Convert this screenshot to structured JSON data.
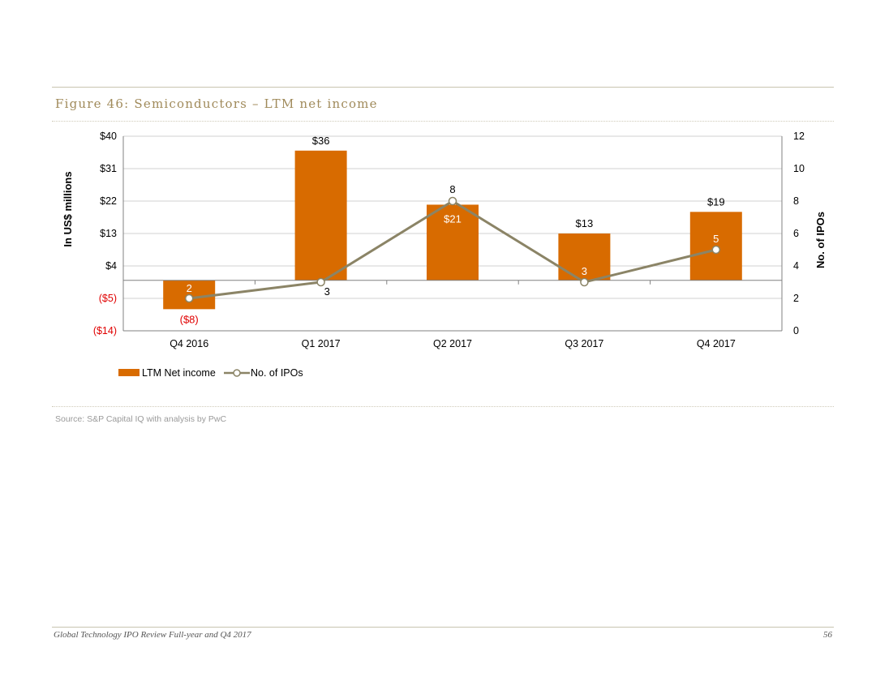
{
  "figure_title": "Figure 46: Semiconductors – LTM net income",
  "source": "Source: S&P Capital IQ with analysis by PwC",
  "footer": {
    "text": "Global Technology IPO Review Full-year and Q4 2017",
    "page_number": "56"
  },
  "colors": {
    "bar": "#d86b00",
    "line": "#8b8466",
    "negative_label": "#e00000",
    "title": "#a08a5a"
  },
  "chart_data": {
    "type": "bar",
    "categories": [
      "Q4 2016",
      "Q1 2017",
      "Q2 2017",
      "Q3 2017",
      "Q4 2017"
    ],
    "series": [
      {
        "name": "LTM Net income",
        "type": "bar",
        "axis": "left",
        "values": [
          -8,
          36,
          21,
          13,
          19
        ],
        "labels": [
          "($8)",
          "$36",
          "$21",
          "$13",
          "$19"
        ]
      },
      {
        "name": "No. of IPOs",
        "type": "line",
        "axis": "right",
        "values": [
          2,
          3,
          8,
          3,
          5
        ],
        "labels": [
          "2",
          "3",
          "8",
          "3",
          "5"
        ]
      }
    ],
    "ylabel": "In US$ millions",
    "y2label": "No. of IPOs",
    "ylim": [
      -14,
      40
    ],
    "y2lim": [
      0,
      12
    ],
    "yticks": [
      -14,
      -5,
      4,
      13,
      22,
      31,
      40
    ],
    "ytick_labels": [
      "($14)",
      "($5)",
      "$4",
      "$13",
      "$22",
      "$31",
      "$40"
    ],
    "y2ticks": [
      0,
      2,
      4,
      6,
      8,
      10,
      12
    ],
    "y2tick_labels": [
      "0",
      "2",
      "4",
      "6",
      "8",
      "10",
      "12"
    ],
    "grid": true,
    "legend": "bottom-left"
  }
}
